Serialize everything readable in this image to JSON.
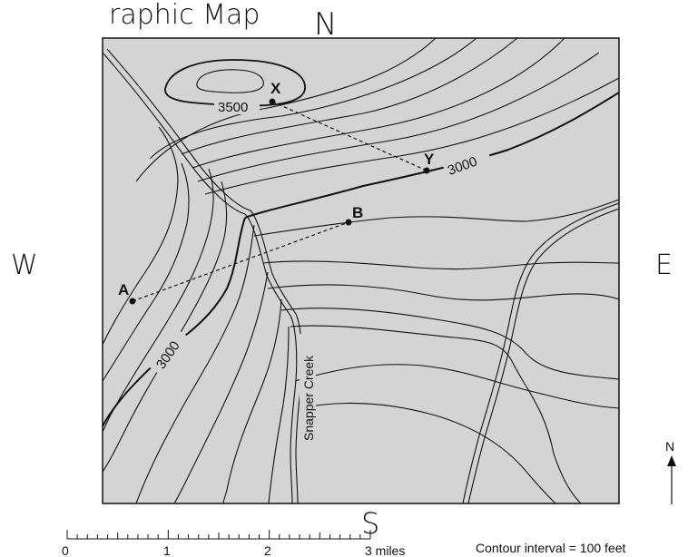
{
  "header_text": "raphic Map",
  "compass": {
    "north": "N",
    "south": "S",
    "east": "E",
    "west": "W"
  },
  "points": {
    "x": "X",
    "y": "Y",
    "a": "A",
    "b": "B"
  },
  "contour_labels": {
    "elev_3500": "3500",
    "elev_3000_east": "3000",
    "elev_3000_west": "3000"
  },
  "creek_label": "Snapper Creek",
  "north_arrow_label": "N",
  "scale": {
    "ticks": [
      "0",
      "1",
      "2",
      "3 miles"
    ]
  },
  "contour_interval": "Contour interval = 100 feet",
  "colors": {
    "map_background": "#d4d4d4",
    "line": "#111111",
    "paper": "#ffffff"
  }
}
